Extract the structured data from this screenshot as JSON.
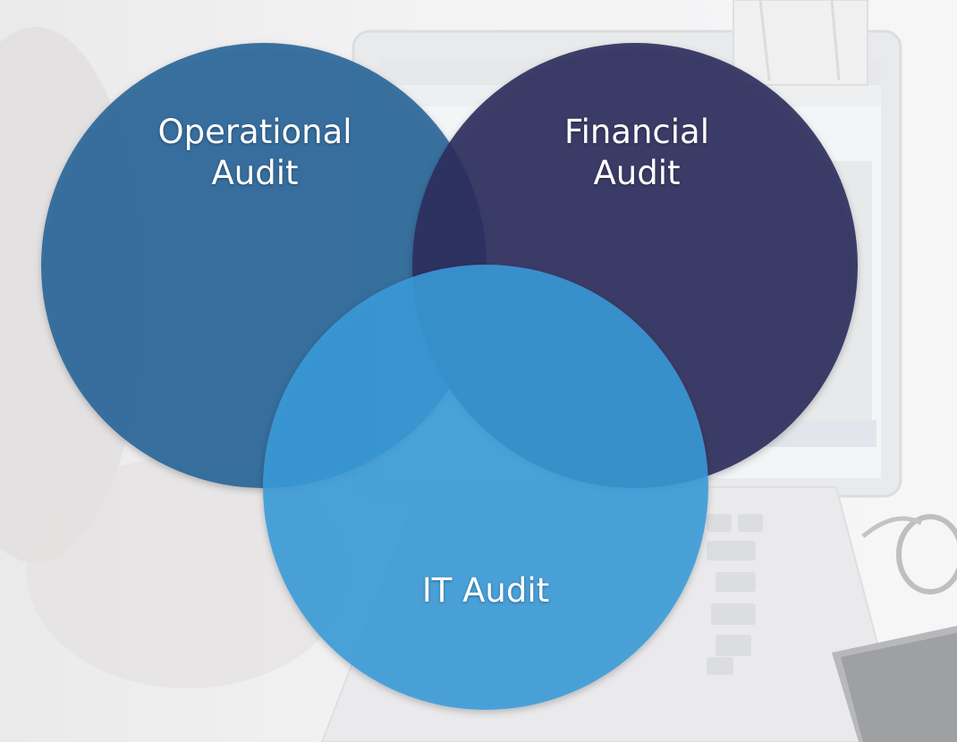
{
  "circles": [
    {
      "id": "operational",
      "lines": [
        "Operational",
        "Audit"
      ],
      "color": "#2c6699"
    },
    {
      "id": "financial",
      "lines": [
        "Financial",
        "Audit"
      ],
      "color": "#2b2f5e"
    },
    {
      "id": "it",
      "lines": [
        "IT Audit"
      ],
      "color": "#3d9ad6"
    }
  ]
}
